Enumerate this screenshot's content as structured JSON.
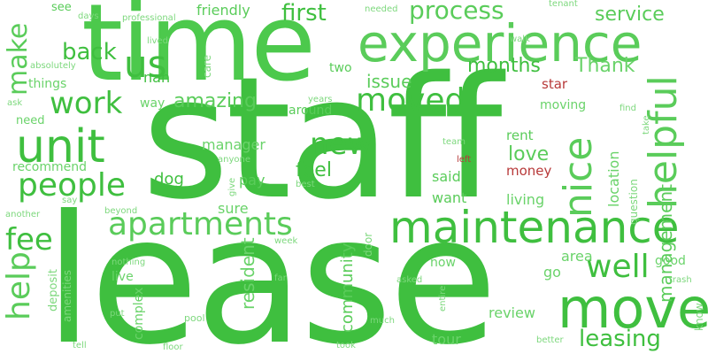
{
  "words": {
    "staff": "staff",
    "lease": "lease",
    "time": "time",
    "experience": "experience",
    "maintenance": "maintenance",
    "move": "move",
    "unit": "unit",
    "apartments": "apartments",
    "helpful": "helpful",
    "people": "people",
    "moved": "moved",
    "us": "us",
    "work": "work",
    "nice": "nice",
    "new": "new",
    "well": "well",
    "fee": "fee",
    "help": "help",
    "leasing": "leasing",
    "make": "make",
    "back": "back",
    "first": "first",
    "process": "process",
    "service": "service",
    "months": "months",
    "thank": "Thank",
    "issue": "issue",
    "amazing": "amazing",
    "management": "management",
    "feel": "feel",
    "love": "love",
    "resident": "resident",
    "community": "community",
    "manager": "manager",
    "dog": "dog",
    "pay": "pay",
    "sure": "sure",
    "said": "said",
    "want": "want",
    "living": "living",
    "location": "location",
    "rent": "rent",
    "money": "money",
    "star": "star",
    "friendly": "friendly",
    "nan": "nan",
    "way": "way",
    "around": "around",
    "two": "two",
    "things": "things",
    "need": "need",
    "recommend": "recommend",
    "see": "see",
    "days": "days",
    "professional": "professional",
    "needed": "needed",
    "tenant": "tenant",
    "lived": "lived",
    "walk": "walk",
    "absolutely": "absolutely",
    "care": "care",
    "moving": "moving",
    "find": "find",
    "ask": "ask",
    "years": "years",
    "take": "take",
    "team": "team",
    "left": "left",
    "anyone": "anyone",
    "question": "question",
    "give": "give",
    "best": "best",
    "say": "say",
    "another": "another",
    "beyond": "beyond",
    "week": "week",
    "door": "door",
    "now": "now",
    "area": "area",
    "good": "good",
    "go": "go",
    "trash": "trash",
    "deposit": "deposit",
    "amenities": "amenities",
    "nothing": "nothing",
    "live": "live",
    "far": "far",
    "asked": "asked",
    "entire": "entire",
    "complex": "complex",
    "put": "put",
    "pool": "pool",
    "much": "much",
    "review": "review",
    "know": "know",
    "tell": "tell",
    "floor": "floor",
    "took": "took",
    "tour": "tour",
    "better": "better"
  },
  "colors": {
    "primary_green": "#4cc94c",
    "dark_green": "#3fbf3f",
    "light_green": "#7dd87d",
    "accent_red": "#b83a3a",
    "background": "#ffffff"
  }
}
